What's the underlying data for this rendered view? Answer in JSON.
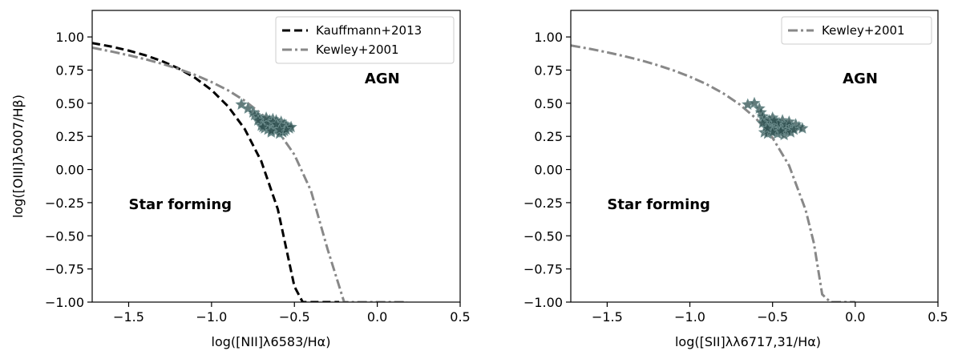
{
  "chart_data": [
    {
      "type": "scatter",
      "xlabel": "log([NII]λ6583/Hα)",
      "ylabel": "log([OIII]λ5007/Hβ)",
      "xlim": [
        -1.72,
        0.5
      ],
      "ylim": [
        -1.0,
        1.2
      ],
      "xticks": [
        "−1.5",
        "−1.0",
        "−0.5",
        "0.0",
        "0.5"
      ],
      "xtick_values": [
        -1.5,
        -1.0,
        -0.5,
        0.0,
        0.5
      ],
      "yticks": [
        "1.00",
        "0.75",
        "0.50",
        "0.25",
        "0.00",
        "−0.25",
        "−0.50",
        "−0.75",
        "−1.00"
      ],
      "ytick_values": [
        1.0,
        0.75,
        0.5,
        0.25,
        0.0,
        -0.25,
        -0.5,
        -0.75,
        -1.0
      ],
      "legend_position": "top-right",
      "grid": false,
      "annotations": [
        {
          "text": "AGN",
          "x": 0.03,
          "y": 0.65
        },
        {
          "text": "Star forming",
          "x": -1.5,
          "y": -0.3
        }
      ],
      "series": [
        {
          "name": "Kauffmann+2013",
          "kind": "curve",
          "style": "dashed",
          "color": "#000000",
          "x": [
            -1.72,
            -1.6,
            -1.5,
            -1.4,
            -1.3,
            -1.2,
            -1.1,
            -1.0,
            -0.9,
            -0.8,
            -0.7,
            -0.6,
            -0.5,
            -0.45,
            -0.4,
            -0.35,
            -0.3,
            -0.27,
            -0.25,
            -0.23
          ],
          "y": [
            0.954,
            0.926,
            0.897,
            0.862,
            0.818,
            0.763,
            0.692,
            0.6,
            0.476,
            0.306,
            0.063,
            -0.3,
            -0.882,
            -1.0,
            -1.0,
            -1.0,
            -1.0,
            -1.0,
            -1.0,
            -1.0
          ],
          "note_hidden": ""
        },
        {
          "name": "Kewley+2001",
          "kind": "curve",
          "style": "dashdot",
          "color": "#888888",
          "x": [
            -1.72,
            -1.6,
            -1.5,
            -1.4,
            -1.3,
            -1.2,
            -1.1,
            -1.0,
            -0.9,
            -0.8,
            -0.7,
            -0.6,
            -0.5,
            -0.4,
            -0.3,
            -0.2,
            -0.1,
            -0.05,
            0.0,
            0.05,
            0.1,
            0.15,
            0.18
          ],
          "y": [
            0.919,
            0.889,
            0.862,
            0.832,
            0.798,
            0.759,
            0.714,
            0.66,
            0.597,
            0.519,
            0.421,
            0.292,
            0.112,
            -0.161,
            -0.6,
            -1.0,
            -1.0,
            -1.0,
            -1.0,
            -1.0,
            -1.0,
            -1.0,
            -1.0
          ]
        },
        {
          "name": "",
          "kind": "points",
          "color": "#2f4f4f",
          "x": [
            -0.82,
            -0.78,
            -0.75,
            -0.74,
            -0.72,
            -0.71,
            -0.7,
            -0.69,
            -0.68,
            -0.67,
            -0.66,
            -0.65,
            -0.64,
            -0.63,
            -0.62,
            -0.61,
            -0.6,
            -0.59,
            -0.58,
            -0.57,
            -0.56,
            -0.55,
            -0.54,
            -0.53,
            -0.52,
            -0.68,
            -0.66,
            -0.64,
            -0.62,
            -0.6,
            -0.58,
            -0.56,
            -0.7,
            -0.65,
            -0.63,
            -0.61,
            -0.59,
            -0.57,
            -0.55,
            -0.62,
            -0.6,
            -0.58,
            -0.64,
            -0.66,
            -0.72,
            -0.69,
            -0.67,
            -0.63,
            -0.61,
            -0.59
          ],
          "y": [
            0.49,
            0.46,
            0.43,
            0.41,
            0.4,
            0.38,
            0.36,
            0.37,
            0.35,
            0.34,
            0.33,
            0.36,
            0.32,
            0.34,
            0.31,
            0.33,
            0.3,
            0.32,
            0.29,
            0.31,
            0.34,
            0.33,
            0.32,
            0.31,
            0.32,
            0.31,
            0.3,
            0.28,
            0.3,
            0.35,
            0.36,
            0.29,
            0.33,
            0.37,
            0.38,
            0.37,
            0.27,
            0.28,
            0.3,
            0.34,
            0.32,
            0.33,
            0.29,
            0.35,
            0.37,
            0.32,
            0.39,
            0.36,
            0.34,
            0.3
          ]
        }
      ]
    },
    {
      "type": "scatter",
      "xlabel": "log([SII]λλ6717,31/Hα)",
      "ylabel": "",
      "xlim": [
        -1.72,
        0.5
      ],
      "ylim": [
        -1.0,
        1.2
      ],
      "xticks": [
        "−1.5",
        "−1.0",
        "−0.5",
        "0.0",
        "0.5"
      ],
      "xtick_values": [
        -1.5,
        -1.0,
        -0.5,
        0.0,
        0.5
      ],
      "yticks": [
        "1.00",
        "0.75",
        "0.50",
        "0.25",
        "0.00",
        "−0.25",
        "−0.50",
        "−0.75",
        "−1.00"
      ],
      "ytick_values": [
        1.0,
        0.75,
        0.5,
        0.25,
        0.0,
        -0.25,
        -0.5,
        -0.75,
        -1.0
      ],
      "legend_position": "top-right",
      "grid": false,
      "annotations": [
        {
          "text": "AGN",
          "x": 0.03,
          "y": 0.65
        },
        {
          "text": "Star forming",
          "x": -1.5,
          "y": -0.3
        }
      ],
      "series": [
        {
          "name": "Kewley+2001",
          "kind": "curve",
          "style": "dashdot",
          "color": "#888888",
          "x": [
            -1.72,
            -1.6,
            -1.5,
            -1.4,
            -1.3,
            -1.2,
            -1.1,
            -1.0,
            -0.9,
            -0.8,
            -0.7,
            -0.6,
            -0.5,
            -0.4,
            -0.3,
            -0.25,
            -0.2,
            -0.15,
            -0.1,
            -0.06,
            -0.03,
            -0.01,
            0.0
          ],
          "y": [
            0.936,
            0.909,
            0.884,
            0.856,
            0.825,
            0.789,
            0.748,
            0.7,
            0.644,
            0.576,
            0.492,
            0.385,
            0.239,
            0.03,
            -0.305,
            -0.556,
            -0.942,
            -1.0,
            -1.0,
            -1.0,
            -1.0,
            -1.0,
            -1.0
          ]
        },
        {
          "name": "",
          "kind": "points",
          "color": "#2f4f4f",
          "x": [
            -0.65,
            -0.61,
            -0.58,
            -0.57,
            -0.56,
            -0.55,
            -0.54,
            -0.53,
            -0.52,
            -0.51,
            -0.5,
            -0.49,
            -0.48,
            -0.47,
            -0.46,
            -0.45,
            -0.44,
            -0.43,
            -0.42,
            -0.41,
            -0.4,
            -0.38,
            -0.36,
            -0.34,
            -0.32,
            -0.55,
            -0.53,
            -0.51,
            -0.49,
            -0.47,
            -0.45,
            -0.43,
            -0.41,
            -0.39,
            -0.37,
            -0.52,
            -0.5,
            -0.48,
            -0.46,
            -0.44,
            -0.54,
            -0.5,
            -0.47,
            -0.44,
            -0.42,
            -0.56,
            -0.53,
            -0.49,
            -0.45,
            -0.4
          ],
          "y": [
            0.49,
            0.5,
            0.46,
            0.43,
            0.4,
            0.38,
            0.36,
            0.34,
            0.33,
            0.35,
            0.31,
            0.33,
            0.3,
            0.32,
            0.34,
            0.31,
            0.33,
            0.29,
            0.32,
            0.3,
            0.33,
            0.31,
            0.34,
            0.32,
            0.31,
            0.28,
            0.27,
            0.29,
            0.3,
            0.27,
            0.28,
            0.26,
            0.29,
            0.28,
            0.3,
            0.37,
            0.39,
            0.36,
            0.35,
            0.37,
            0.32,
            0.28,
            0.35,
            0.3,
            0.34,
            0.35,
            0.31,
            0.37,
            0.29,
            0.36
          ]
        }
      ]
    }
  ]
}
